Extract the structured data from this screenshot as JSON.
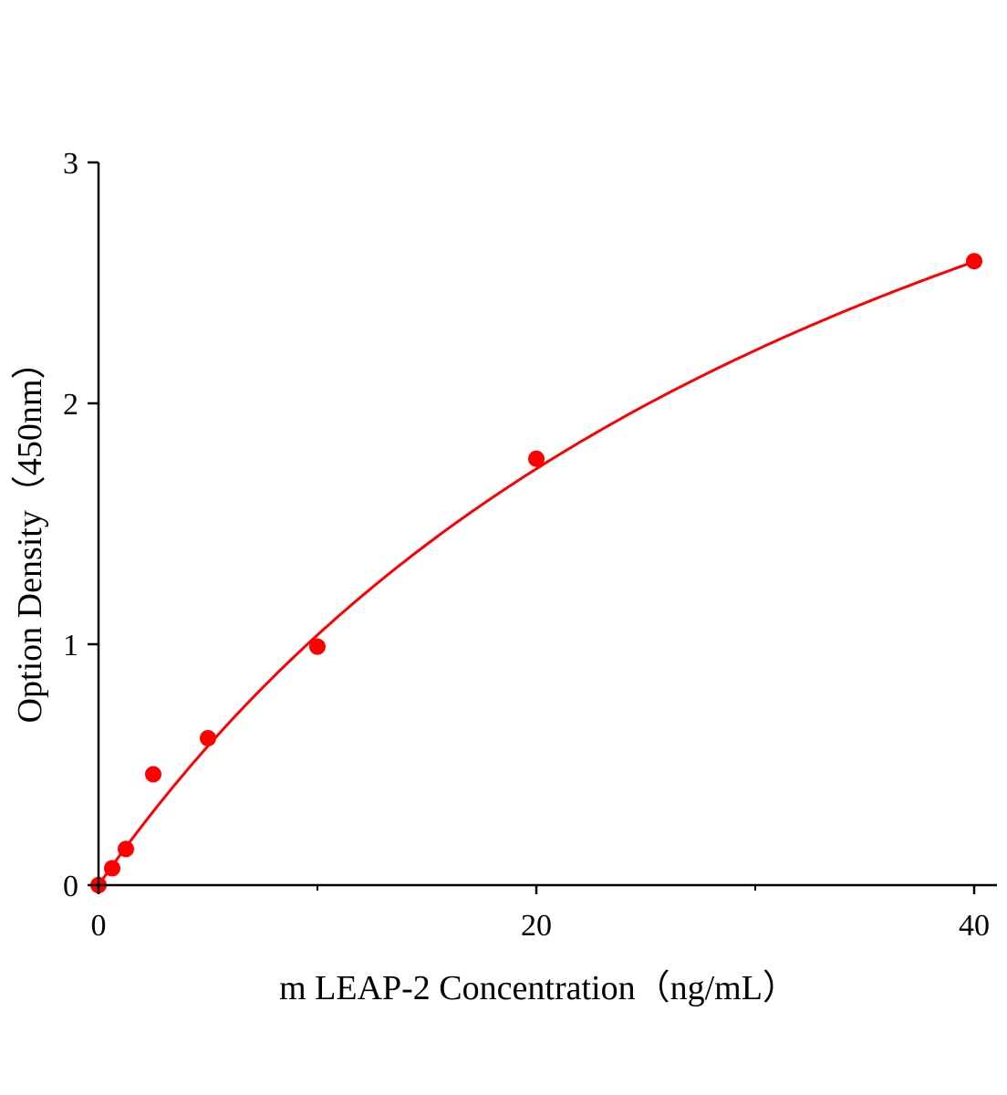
{
  "chart_data": {
    "type": "scatter",
    "title": "",
    "xlabel": "m LEAP-2 Concentration（ng/mL）",
    "ylabel": "Option Density（450nm）",
    "xlim": [
      0,
      41
    ],
    "ylim": [
      0,
      3
    ],
    "x_ticks": [
      0,
      20,
      40
    ],
    "x_tick_labels": [
      "0",
      "20",
      "40"
    ],
    "x_minor_ticks": [
      10,
      30
    ],
    "y_ticks": [
      0,
      1,
      2,
      3
    ],
    "y_tick_labels": [
      "0",
      "1",
      "2",
      "3"
    ],
    "grid": false,
    "legend": "none",
    "series": [
      {
        "x": [
          0,
          0.625,
          1.25,
          2.5,
          5,
          10,
          20,
          40
        ],
        "y": [
          0.0,
          0.07,
          0.15,
          0.46,
          0.61,
          0.99,
          1.77,
          2.59
        ],
        "marker": "circle",
        "fit_line": true,
        "color": "#ff0000"
      }
    ]
  }
}
